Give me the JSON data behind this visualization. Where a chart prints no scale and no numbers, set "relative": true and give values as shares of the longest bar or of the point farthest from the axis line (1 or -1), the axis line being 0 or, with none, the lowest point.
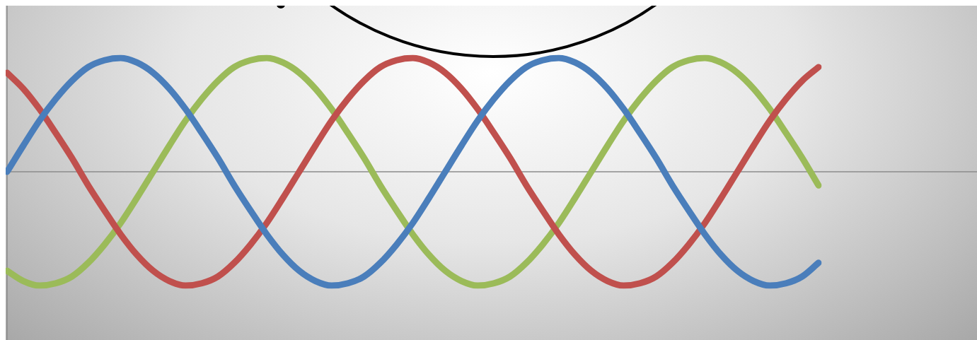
{
  "chart_data": {
    "type": "line",
    "relative": true,
    "legend": false,
    "marker": "none",
    "line_style": "solid",
    "categories": [
      null,
      null,
      null,
      null,
      null,
      null,
      null,
      null,
      null,
      null,
      null,
      null,
      null,
      null,
      null,
      null,
      null,
      null,
      null,
      null,
      null,
      null,
      null,
      null,
      null,
      null,
      null,
      null,
      null,
      null,
      null,
      null,
      null,
      null,
      null,
      null,
      null,
      null,
      null,
      null,
      null,
      null,
      null,
      null,
      null,
      null,
      null,
      null,
      null,
      null,
      null
    ],
    "series": [
      {
        "color": "#4a7ebb",
        "values": [
          0,
          0.23,
          0.45,
          0.64,
          0.8,
          0.92,
          0.98,
          1,
          0.96,
          0.87,
          0.73,
          0.55,
          0.34,
          0.12,
          -0.12,
          -0.34,
          -0.55,
          -0.73,
          -0.87,
          -0.96,
          -1,
          -0.98,
          -0.92,
          -0.8,
          -0.64,
          -0.45,
          -0.23,
          0,
          0.23,
          0.45,
          0.64,
          0.8,
          0.92,
          0.98,
          1,
          0.96,
          0.87,
          0.73,
          0.55,
          0.34,
          0.12,
          -0.12,
          -0.34,
          -0.55,
          -0.73,
          -0.87,
          -0.96,
          -1,
          -0.98,
          -0.92,
          -0.8
        ]
      },
      {
        "color": "#c0504d",
        "values": [
          0.87,
          0.73,
          0.55,
          0.34,
          0.12,
          -0.12,
          -0.34,
          -0.55,
          -0.73,
          -0.87,
          -0.96,
          -1,
          -0.98,
          -0.92,
          -0.8,
          -0.64,
          -0.45,
          -0.23,
          0,
          0.23,
          0.45,
          0.64,
          0.8,
          0.92,
          0.98,
          1,
          0.96,
          0.87,
          0.73,
          0.55,
          0.34,
          0.12,
          -0.12,
          -0.34,
          -0.55,
          -0.73,
          -0.87,
          -0.96,
          -1,
          -0.98,
          -0.92,
          -0.8,
          -0.64,
          -0.45,
          -0.23,
          0,
          0.23,
          0.45,
          0.64,
          0.8,
          0.92
        ]
      },
      {
        "color": "#9bbb59",
        "values": [
          -0.87,
          -0.96,
          -1,
          -0.98,
          -0.92,
          -0.8,
          -0.64,
          -0.45,
          -0.23,
          0,
          0.23,
          0.45,
          0.64,
          0.8,
          0.92,
          0.98,
          1,
          0.96,
          0.87,
          0.73,
          0.55,
          0.34,
          0.12,
          -0.12,
          -0.34,
          -0.55,
          -0.73,
          -0.87,
          -0.96,
          -1,
          -0.98,
          -0.92,
          -0.8,
          -0.64,
          -0.45,
          -0.23,
          0,
          0.23,
          0.45,
          0.64,
          0.8,
          0.92,
          0.98,
          1,
          0.96,
          0.87,
          0.73,
          0.55,
          0.34,
          0.12,
          -0.12
        ]
      }
    ]
  }
}
